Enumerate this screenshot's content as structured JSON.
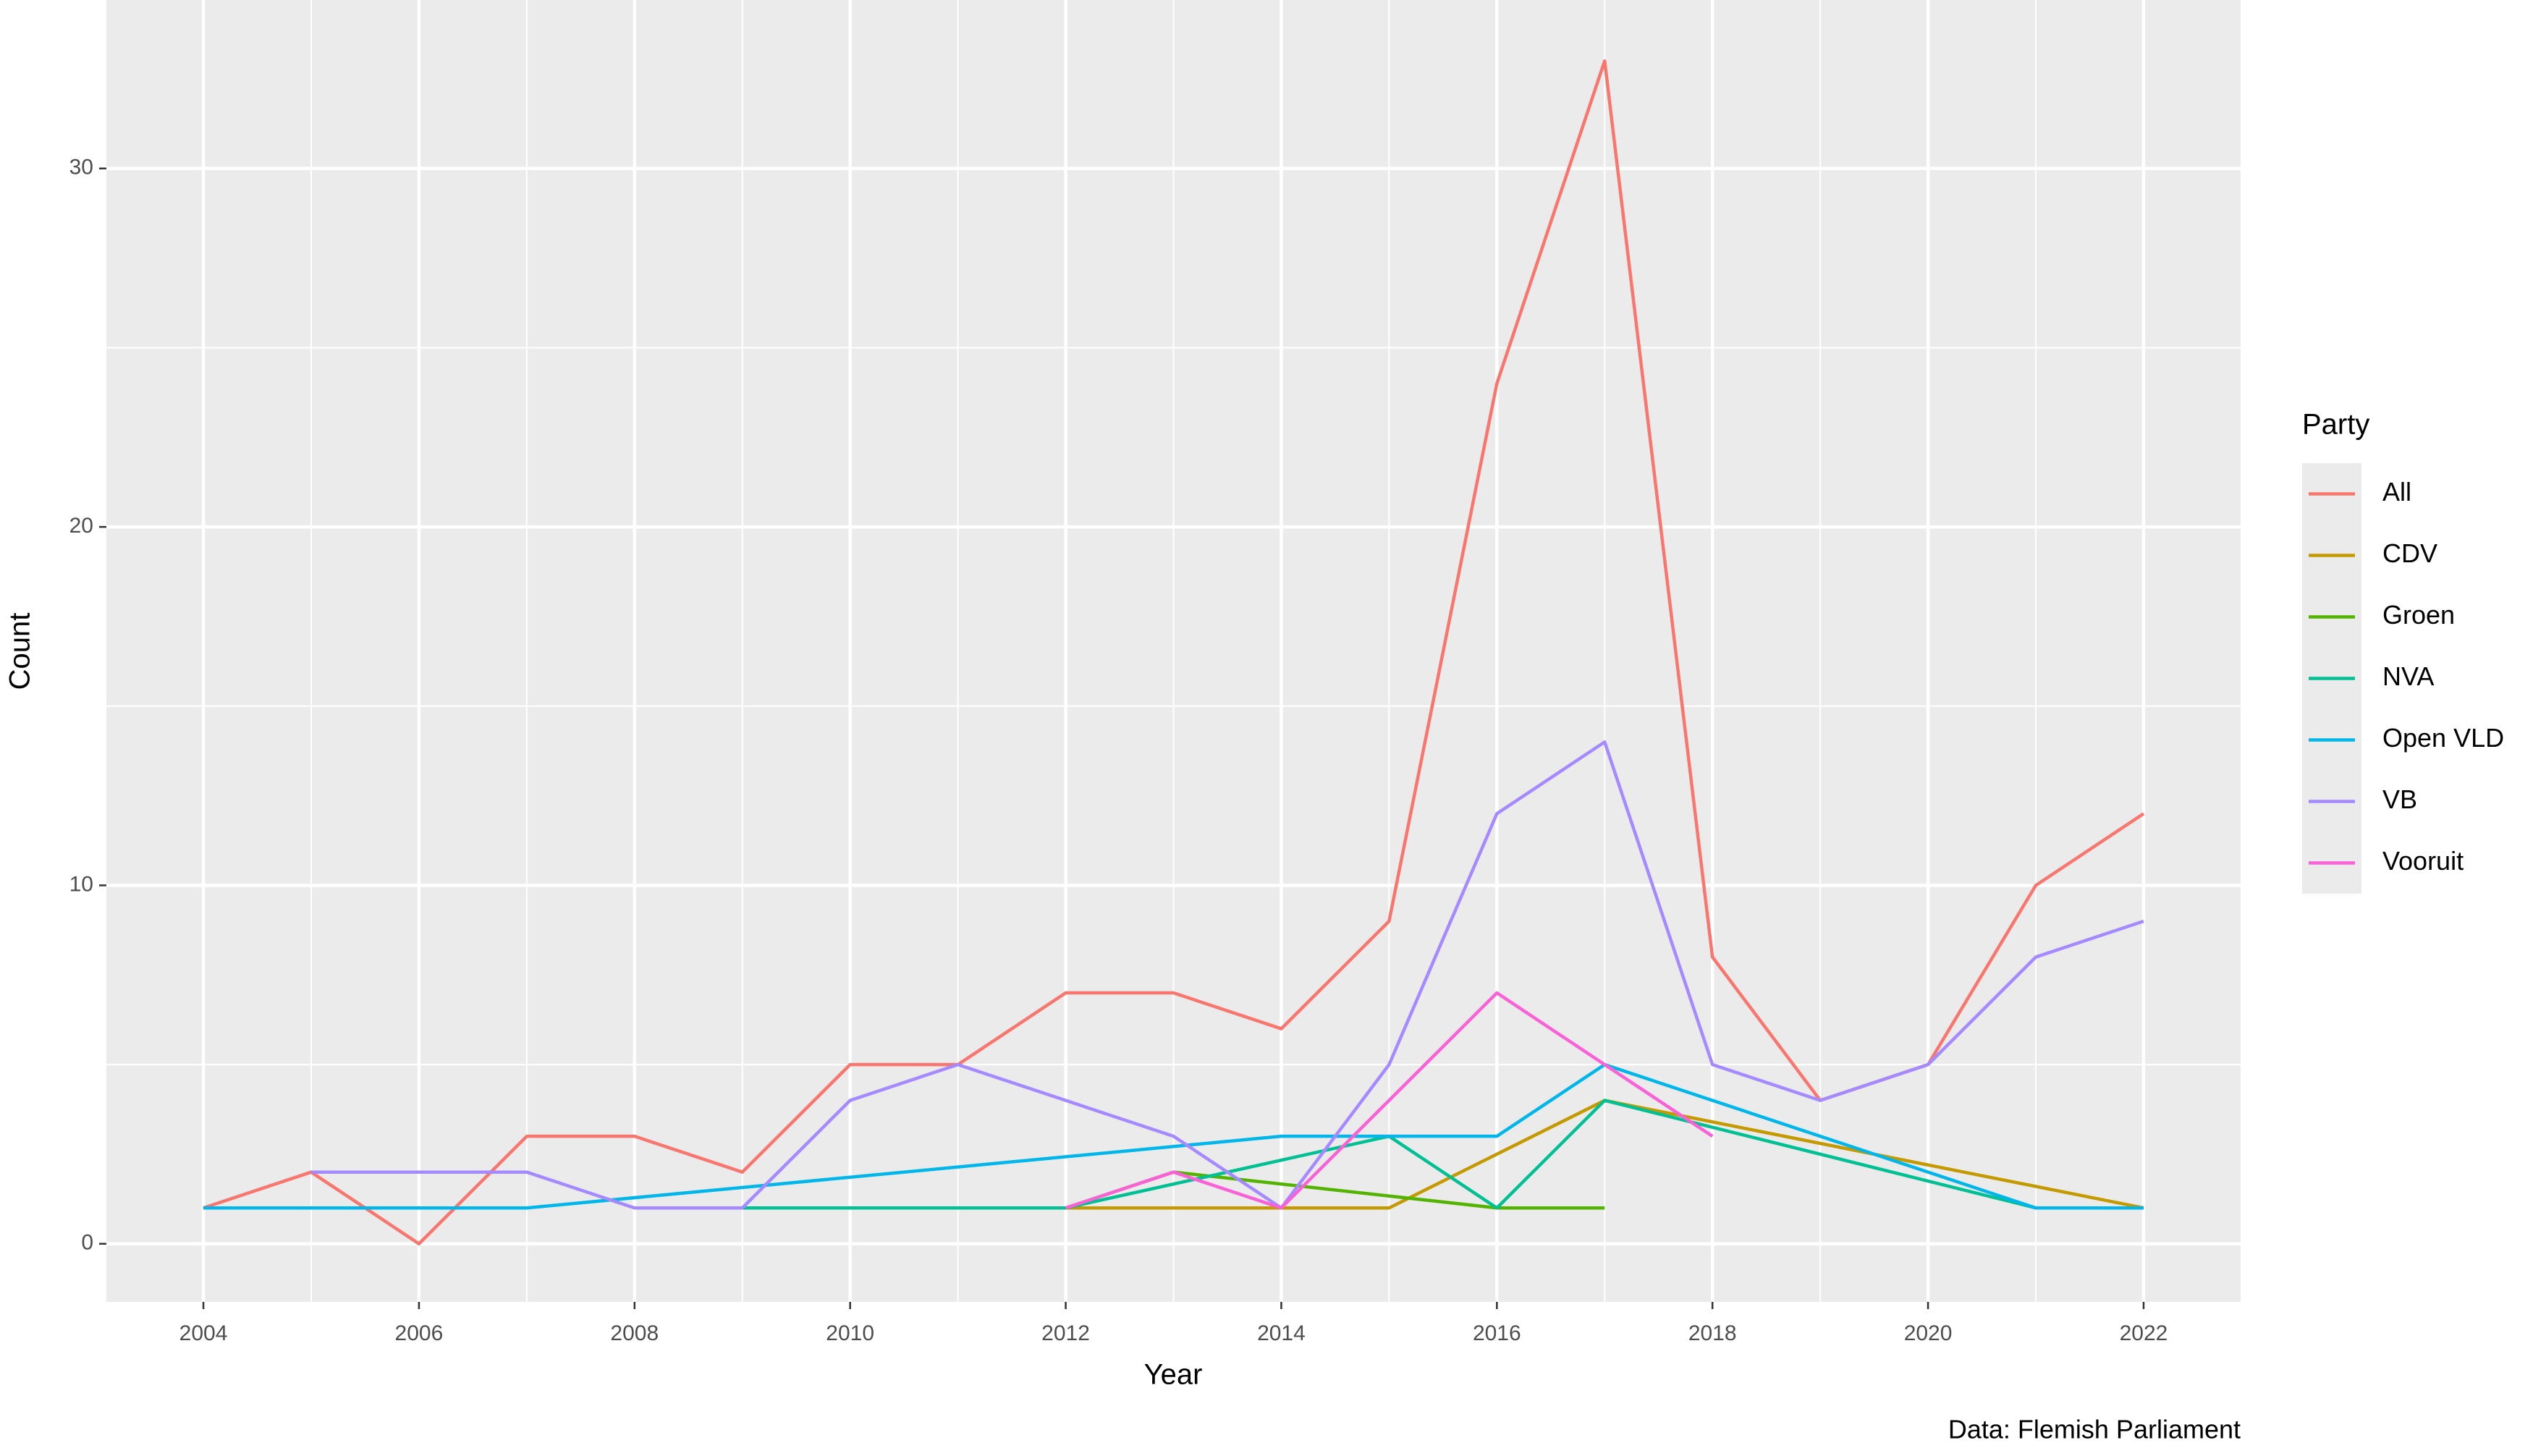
{
  "chart_data": {
    "type": "line",
    "x_label": "Year",
    "y_label": "Count",
    "legend_title": "Party",
    "caption": "Data: Flemish Parliament",
    "xlim": [
      2003.1,
      2022.9
    ],
    "xticks": [
      2004,
      2006,
      2008,
      2010,
      2012,
      2014,
      2016,
      2018,
      2020,
      2022
    ],
    "ylim": [
      -1.62,
      34.7
    ],
    "yticks": [
      0,
      10,
      20,
      30
    ],
    "grid": true,
    "legend_position": "right",
    "series": [
      {
        "name": "All",
        "color": "#F8766D",
        "x": [
          2004,
          2005,
          2006,
          2007,
          2008,
          2009,
          2010,
          2011,
          2012,
          2013,
          2014,
          2015,
          2016,
          2017,
          2018,
          2019,
          2020,
          2021,
          2022
        ],
        "values": [
          1,
          2,
          0,
          3,
          3,
          2,
          5,
          5,
          7,
          7,
          6,
          9,
          24,
          33,
          8,
          4,
          5,
          10,
          12
        ]
      },
      {
        "name": "CDV",
        "color": "#C49A00",
        "x": [
          2012,
          2015,
          2017,
          2022
        ],
        "values": [
          1,
          1,
          4,
          1
        ]
      },
      {
        "name": "Groen",
        "color": "#53B400",
        "x": [
          2012,
          2013,
          2016,
          2017
        ],
        "values": [
          1,
          2,
          1,
          1
        ]
      },
      {
        "name": "NVA",
        "color": "#00C094",
        "x": [
          2009,
          2012,
          2015,
          2016,
          2017,
          2021,
          2022
        ],
        "values": [
          1,
          1,
          3,
          1,
          4,
          1,
          1
        ]
      },
      {
        "name": "Open VLD",
        "color": "#00B6EB",
        "x": [
          2004,
          2007,
          2014,
          2015,
          2016,
          2017,
          2021,
          2022
        ],
        "values": [
          1,
          1,
          3,
          3,
          3,
          5,
          1,
          1
        ]
      },
      {
        "name": "VB",
        "color": "#A58AFF",
        "x": [
          2005,
          2006,
          2007,
          2008,
          2009,
          2010,
          2011,
          2013,
          2014,
          2015,
          2016,
          2017,
          2018,
          2019,
          2020,
          2021,
          2022
        ],
        "values": [
          2,
          2,
          2,
          1,
          1,
          4,
          5,
          3,
          1,
          5,
          12,
          14,
          5,
          4,
          5,
          8,
          9
        ]
      },
      {
        "name": "Vooruit",
        "color": "#FB61D7",
        "x": [
          2012,
          2013,
          2014,
          2016,
          2017,
          2018
        ],
        "values": [
          1,
          2,
          1,
          7,
          5,
          3
        ]
      }
    ]
  }
}
